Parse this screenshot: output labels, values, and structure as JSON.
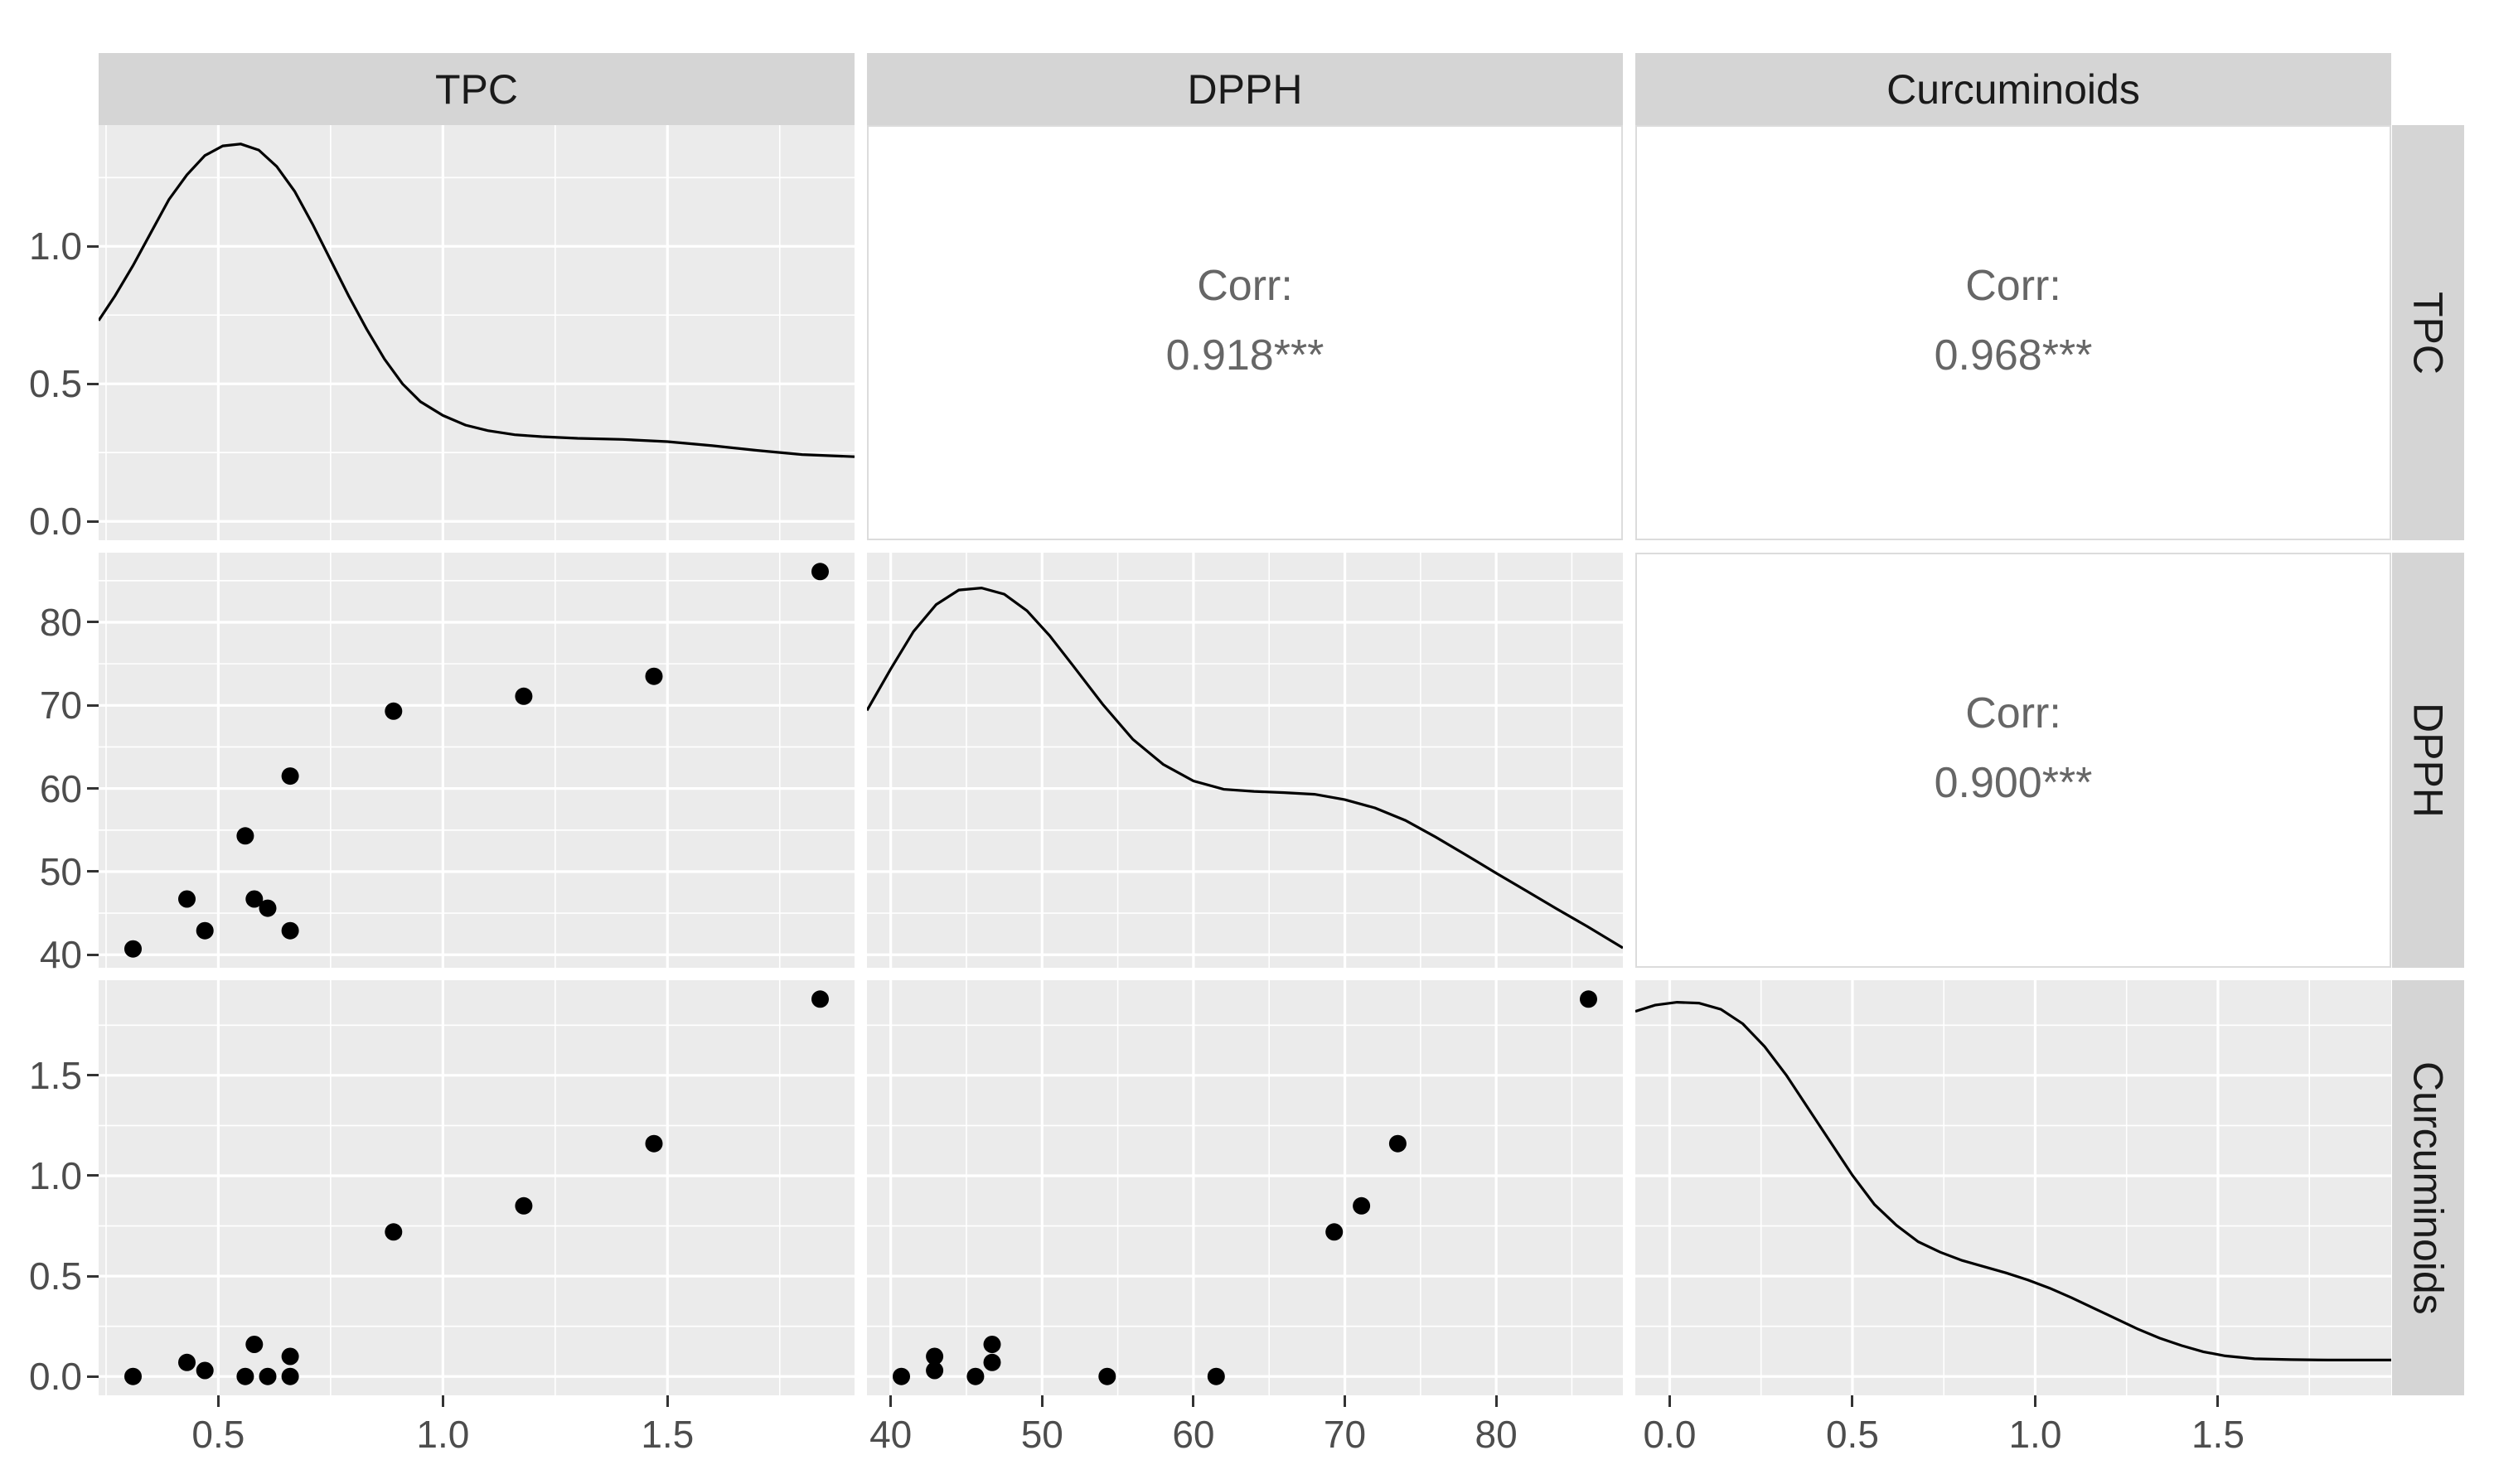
{
  "strips": {
    "top": [
      "TPC",
      "DPPH",
      "Curcuminoids"
    ],
    "right": [
      "TPC",
      "DPPH",
      "Curcuminoids"
    ]
  },
  "corr_cells": {
    "label": "Corr:",
    "tpc_dpph": "0.918***",
    "tpc_curcuminoids": "0.968***",
    "dpph_curcuminoids": "0.900***"
  },
  "colors": {
    "background": "#FFFFFF",
    "panel_bg": "#EBEBEB",
    "strip_bg": "#D5D5D5",
    "grid": "#FFFFFF",
    "point": "#000000",
    "density_line": "#000000",
    "tick": "#333333",
    "tick_label": "#4D4D4D",
    "corr_text": "#666666",
    "strip_text": "#1A1A1A",
    "corr_border": "#DCDCDC"
  },
  "chart_data": {
    "type": "scatter",
    "subtype": "pairs-matrix",
    "variables": [
      "TPC",
      "DPPH",
      "Curcuminoids"
    ],
    "n_points": 12,
    "observations": {
      "TPC": [
        0.31,
        0.43,
        0.47,
        0.56,
        0.58,
        0.61,
        0.66,
        0.66,
        0.89,
        1.18,
        1.47,
        1.84
      ],
      "DPPH": [
        40.7,
        46.7,
        42.9,
        54.3,
        46.7,
        45.6,
        42.9,
        61.5,
        69.3,
        71.1,
        73.5,
        86.1
      ],
      "Curcuminoids": [
        0.0,
        0.07,
        0.03,
        0.0,
        0.16,
        0.0,
        0.1,
        0.0,
        0.72,
        0.85,
        1.16,
        1.88
      ]
    },
    "correlations": {
      "TPC_DPPH": 0.918,
      "TPC_Curcuminoids": 0.968,
      "DPPH_Curcuminoids": 0.9
    },
    "axes": {
      "TPC": {
        "lim": [
          0.2335,
          1.9165
        ],
        "major": [
          0.5,
          1.0,
          1.5
        ],
        "minor": [
          0.25,
          0.75,
          1.25,
          1.75
        ],
        "labels": [
          "0.5",
          "1.0",
          "1.5"
        ]
      },
      "DPPH": {
        "lim": [
          38.43,
          88.37
        ],
        "major": [
          40,
          50,
          60,
          70,
          80
        ],
        "minor": [
          45,
          55,
          65,
          75,
          85
        ],
        "labels": [
          "40",
          "50",
          "60",
          "70",
          "80"
        ]
      },
      "Curcuminoids": {
        "lim": [
          -0.094,
          1.974
        ],
        "major": [
          0.0,
          0.5,
          1.0,
          1.5
        ],
        "minor": [
          0.25,
          0.75,
          1.25,
          1.75
        ],
        "labels": [
          "0.0",
          "0.5",
          "1.0",
          "1.5"
        ]
      },
      "TPC_density": {
        "lim": [
          -0.0686,
          1.4406
        ],
        "major": [
          0.0,
          0.5,
          1.0
        ],
        "minor": [
          0.25,
          0.75,
          1.25
        ],
        "labels": [
          "0.0",
          "0.5",
          "1.0"
        ]
      },
      "unit": {
        "lim": [
          0,
          1
        ],
        "major": [],
        "minor": [],
        "labels": []
      }
    },
    "col_xaxes": [
      "TPC",
      "DPPH",
      "Curcuminoids"
    ],
    "row_yaxes": [
      "TPC_density",
      "DPPH",
      "Curcuminoids"
    ],
    "densities": {
      "TPC": {
        "x": [
          0.2335,
          0.27,
          0.31,
          0.35,
          0.39,
          0.43,
          0.47,
          0.51,
          0.55,
          0.59,
          0.63,
          0.67,
          0.71,
          0.75,
          0.79,
          0.83,
          0.87,
          0.91,
          0.95,
          1.0,
          1.05,
          1.1,
          1.16,
          1.22,
          1.3,
          1.4,
          1.5,
          1.6,
          1.7,
          1.8,
          1.9165
        ],
        "y": [
          0.73,
          0.82,
          0.93,
          1.05,
          1.17,
          1.26,
          1.33,
          1.365,
          1.372,
          1.35,
          1.29,
          1.2,
          1.08,
          0.95,
          0.82,
          0.7,
          0.59,
          0.5,
          0.435,
          0.385,
          0.35,
          0.33,
          0.315,
          0.308,
          0.302,
          0.298,
          0.29,
          0.275,
          0.258,
          0.243,
          0.235
        ]
      },
      "DPPH": {
        "x": [
          38.43,
          40,
          41.5,
          43,
          44.5,
          46,
          47.5,
          49,
          50.5,
          52,
          54,
          56,
          58,
          60,
          62,
          64,
          66,
          68,
          70,
          72,
          74,
          76,
          78,
          80,
          82,
          84,
          86,
          88.37
        ],
        "y": [
          0.62,
          0.72,
          0.81,
          0.875,
          0.91,
          0.915,
          0.9,
          0.86,
          0.8,
          0.73,
          0.635,
          0.55,
          0.49,
          0.45,
          0.43,
          0.425,
          0.422,
          0.418,
          0.405,
          0.385,
          0.355,
          0.315,
          0.272,
          0.228,
          0.185,
          0.142,
          0.1,
          0.048
        ]
      },
      "Curcuminoids": {
        "x": [
          -0.094,
          -0.04,
          0.02,
          0.08,
          0.14,
          0.2,
          0.26,
          0.32,
          0.38,
          0.44,
          0.5,
          0.56,
          0.62,
          0.68,
          0.74,
          0.8,
          0.86,
          0.92,
          0.98,
          1.04,
          1.1,
          1.16,
          1.22,
          1.28,
          1.34,
          1.4,
          1.46,
          1.52,
          1.6,
          1.7,
          1.8,
          1.9,
          1.974
        ],
        "y": [
          0.925,
          0.94,
          0.947,
          0.945,
          0.93,
          0.895,
          0.84,
          0.77,
          0.69,
          0.61,
          0.53,
          0.46,
          0.41,
          0.37,
          0.345,
          0.325,
          0.31,
          0.295,
          0.278,
          0.258,
          0.235,
          0.21,
          0.185,
          0.16,
          0.138,
          0.12,
          0.105,
          0.095,
          0.088,
          0.086,
          0.085,
          0.085,
          0.085
        ]
      }
    },
    "panels": [
      {
        "row": 0,
        "col": 0,
        "kind": "density",
        "xaxis": "TPC",
        "yaxis": "TPC_density",
        "gridy": "TPC_density",
        "density": "TPC"
      },
      {
        "row": 0,
        "col": 1,
        "kind": "corr"
      },
      {
        "row": 0,
        "col": 2,
        "kind": "corr"
      },
      {
        "row": 1,
        "col": 0,
        "kind": "scatter",
        "xaxis": "TPC",
        "yaxis": "DPPH",
        "gridy": "DPPH",
        "xvar": "TPC",
        "yvar": "DPPH"
      },
      {
        "row": 1,
        "col": 1,
        "kind": "density",
        "xaxis": "DPPH",
        "yaxis": "unit",
        "gridy": "DPPH",
        "density": "DPPH"
      },
      {
        "row": 1,
        "col": 2,
        "kind": "corr"
      },
      {
        "row": 2,
        "col": 0,
        "kind": "scatter",
        "xaxis": "TPC",
        "yaxis": "Curcuminoids",
        "gridy": "Curcuminoids",
        "xvar": "TPC",
        "yvar": "Curcuminoids"
      },
      {
        "row": 2,
        "col": 1,
        "kind": "scatter",
        "xaxis": "DPPH",
        "yaxis": "Curcuminoids",
        "gridy": "Curcuminoids",
        "xvar": "DPPH",
        "yvar": "Curcuminoids"
      },
      {
        "row": 2,
        "col": 2,
        "kind": "density",
        "xaxis": "Curcuminoids",
        "yaxis": "unit",
        "gridy": "Curcuminoids",
        "density": "Curcuminoids"
      }
    ],
    "legend": "none",
    "grid": "major+minor white on grey panels"
  }
}
